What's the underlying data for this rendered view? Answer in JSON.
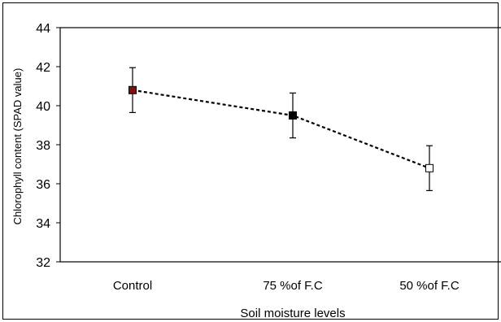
{
  "chart_data": {
    "type": "line",
    "categories": [
      "Control",
      "75 %of F.C",
      "50 %of F.C"
    ],
    "series": [
      {
        "values": [
          40.8,
          39.5,
          36.8
        ],
        "error": [
          1.15,
          1.15,
          1.15
        ],
        "marker_fills": [
          "#7a1212",
          "#000000",
          "#ffffff"
        ]
      }
    ],
    "xlabel": "Soil moisture levels",
    "ylabel": "Chlorophyll content (SPAD value)",
    "ylim": [
      32,
      44
    ],
    "yticks": [
      "32",
      "34",
      "36",
      "38",
      "40",
      "42",
      "44"
    ],
    "line_style": "dashed",
    "grid": false,
    "legend": "none"
  }
}
